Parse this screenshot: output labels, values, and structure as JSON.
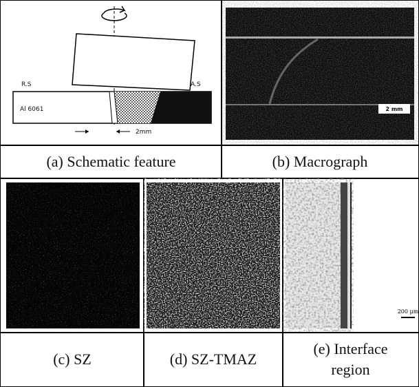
{
  "panels": [
    {
      "label": "(a) Schematic feature",
      "annotations": {
        "retreating_side": "R.S",
        "advancing_side": "A.S",
        "material": "Al 6061",
        "offset": "2mm"
      }
    },
    {
      "label": "(b) Macrograph",
      "scale_bar": "2 mm"
    },
    {
      "label": "(c) SZ"
    },
    {
      "label": "(d) SZ-TMAZ"
    },
    {
      "label": "(e) Interface region",
      "scale_bar": "200 μm"
    }
  ]
}
